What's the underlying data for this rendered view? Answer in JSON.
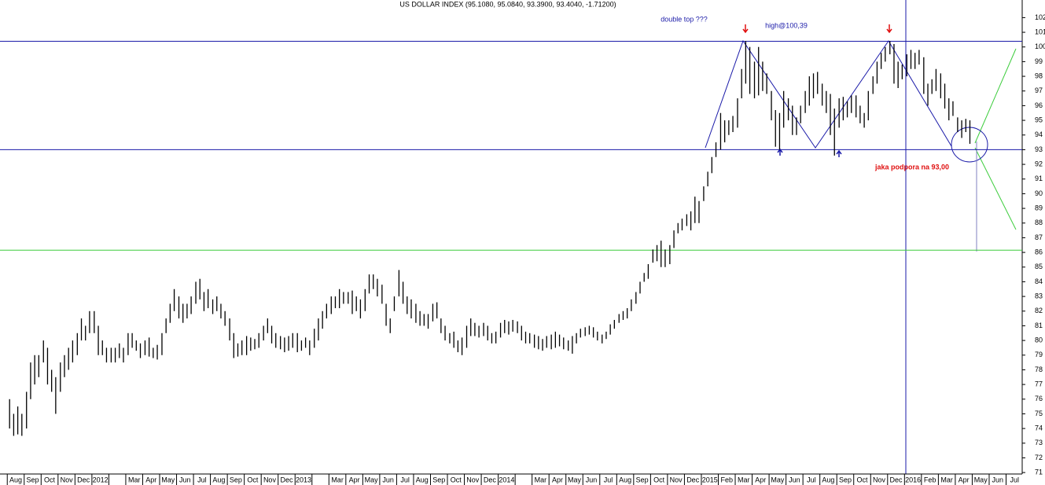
{
  "chart_data": {
    "type": "range-bar",
    "title": "US DOLLAR INDEX (95.1080, 95.0840, 93.3900, 93.4040, -1.71200)",
    "annotations": [
      {
        "text": "double top ???",
        "color": "#1a1aa8"
      },
      {
        "text": "high@100,39",
        "color": "#1a1aa8"
      },
      {
        "text": "jaka podpora na 93,00",
        "color": "#e01010"
      }
    ],
    "hlines": [
      {
        "value": 100.39,
        "color": "#1a1aa8"
      },
      {
        "value": 93,
        "color": "#1a1aa8"
      },
      {
        "value": 86.15,
        "color": "#3ccc3c"
      }
    ],
    "ylim": [
      70.9,
      103.2
    ],
    "yticks": [
      71,
      72,
      73,
      74,
      75,
      76,
      77,
      78,
      79,
      80,
      81,
      82,
      83,
      84,
      85,
      86,
      87,
      88,
      89,
      90,
      91,
      92,
      93,
      94,
      95,
      96,
      97,
      98,
      99,
      100,
      101,
      102
    ],
    "bar_color": "#000000",
    "categories": [
      "Aug",
      "Sep",
      "Oct",
      "Nov",
      "Dec",
      "2012",
      null,
      "Mar",
      "Apr",
      "May",
      "Jun",
      "Jul",
      "Aug",
      "Sep",
      "Oct",
      "Nov",
      "Dec",
      "2013",
      null,
      "Mar",
      "Apr",
      "May",
      "Jun",
      "Jul",
      "Aug",
      "Sep",
      "Oct",
      "Nov",
      "Dec",
      "2014",
      null,
      "Mar",
      "Apr",
      "May",
      "Jun",
      "Jul",
      "Aug",
      "Sep",
      "Oct",
      "Nov",
      "Dec",
      "2015",
      "Feb",
      "Mar",
      "Apr",
      "May",
      "Jun",
      "Jul",
      "Aug",
      "Sep",
      "Oct",
      "Nov",
      "Dec",
      "2016",
      "Feb",
      "Mar",
      "Apr",
      "May",
      "Jun",
      "Jul"
    ],
    "ranges": [
      [
        [
          74,
          76
        ],
        [
          73.5,
          75
        ],
        [
          73.6,
          75.5
        ],
        [
          73.5,
          75
        ]
      ],
      [
        [
          74,
          76.5
        ],
        [
          76,
          78.5
        ],
        [
          77,
          79
        ],
        [
          77.5,
          79
        ]
      ],
      [
        [
          78.5,
          80
        ],
        [
          77,
          79.5
        ],
        [
          76.5,
          78
        ],
        [
          75,
          77.5
        ]
      ],
      [
        [
          76.5,
          78.5
        ],
        [
          77.5,
          79
        ],
        [
          78,
          79.5
        ],
        [
          78.5,
          80
        ]
      ],
      [
        [
          79,
          80.5
        ],
        [
          80,
          81.5
        ],
        [
          80,
          81
        ],
        [
          80.5,
          82
        ]
      ],
      [
        [
          80.5,
          82
        ],
        [
          79,
          81
        ],
        [
          79,
          80
        ],
        [
          78.5,
          79.5
        ]
      ],
      [
        [
          78.5,
          79.5
        ],
        [
          78.5,
          79.5
        ],
        [
          78.8,
          79.8
        ],
        [
          78.5,
          79.5
        ]
      ],
      [
        [
          79,
          80.5
        ],
        [
          79.5,
          80.5
        ],
        [
          79.3,
          80
        ],
        [
          78.8,
          79.8
        ]
      ],
      [
        [
          79,
          80
        ],
        [
          78.9,
          80.2
        ],
        [
          78.8,
          79.5
        ],
        [
          78.7,
          79.7
        ]
      ],
      [
        [
          79,
          80.5
        ],
        [
          80.5,
          81.5
        ],
        [
          81.2,
          82.5
        ],
        [
          82,
          83.5
        ]
      ],
      [
        [
          81.5,
          83
        ],
        [
          81.2,
          82.5
        ],
        [
          81.5,
          82.5
        ],
        [
          81.8,
          83
        ]
      ],
      [
        [
          82.5,
          84
        ],
        [
          82.8,
          84.2
        ],
        [
          82,
          83.3
        ],
        [
          82.2,
          83.5
        ]
      ],
      [
        [
          81.8,
          82.8
        ],
        [
          82,
          83
        ],
        [
          81.5,
          82.5
        ],
        [
          81,
          82
        ]
      ],
      [
        [
          80,
          81.5
        ],
        [
          78.8,
          80.5
        ],
        [
          78.9,
          79.8
        ],
        [
          79,
          80
        ]
      ],
      [
        [
          79,
          80.3
        ],
        [
          79.3,
          80.2
        ],
        [
          79.4,
          80.1
        ],
        [
          79.5,
          80.5
        ]
      ],
      [
        [
          80,
          81
        ],
        [
          80.5,
          81.5
        ],
        [
          79.8,
          81
        ],
        [
          79.5,
          80.5
        ]
      ],
      [
        [
          79.4,
          80.3
        ],
        [
          79.2,
          80.2
        ],
        [
          79.3,
          80.3
        ],
        [
          79.5,
          80.5
        ]
      ],
      [
        [
          79.2,
          80.5
        ],
        [
          79.3,
          80
        ],
        [
          79.5,
          80.2
        ],
        [
          79,
          80
        ]
      ],
      [
        [
          79.5,
          80.8
        ],
        [
          80,
          81.5
        ],
        [
          80.8,
          82
        ],
        [
          81.5,
          82.5
        ]
      ],
      [
        [
          81.8,
          83
        ],
        [
          82.2,
          83
        ],
        [
          82.2,
          83.5
        ],
        [
          82.5,
          83.3
        ]
      ],
      [
        [
          82.5,
          83.3
        ],
        [
          81.8,
          83.4
        ],
        [
          82,
          83
        ],
        [
          81.5,
          82.8
        ]
      ],
      [
        [
          82,
          83.5
        ],
        [
          83.2,
          84.5
        ],
        [
          83.5,
          84.5
        ],
        [
          83,
          84.2
        ]
      ],
      [
        [
          82.5,
          83.8
        ],
        [
          81,
          82.5
        ],
        [
          80.5,
          81.5
        ],
        [
          82,
          83
        ]
      ],
      [
        [
          83,
          84.8
        ],
        [
          82.5,
          84
        ],
        [
          81.8,
          83
        ],
        [
          81.5,
          82.8
        ]
      ],
      [
        [
          81.2,
          82.5
        ],
        [
          81,
          82
        ],
        [
          81,
          81.8
        ],
        [
          80.8,
          81.8
        ]
      ],
      [
        [
          81.3,
          82.5
        ],
        [
          81.5,
          82.6
        ],
        [
          80.5,
          81.5
        ],
        [
          80,
          81
        ]
      ],
      [
        [
          79.8,
          80.5
        ],
        [
          79.5,
          80.6
        ],
        [
          79.2,
          80
        ],
        [
          79,
          80.2
        ]
      ],
      [
        [
          79.5,
          81
        ],
        [
          80.3,
          81.5
        ],
        [
          80.3,
          81.2
        ],
        [
          80.2,
          81
        ]
      ],
      [
        [
          80.3,
          81.2
        ],
        [
          80,
          81
        ],
        [
          79.8,
          80.5
        ],
        [
          79.8,
          80.6
        ]
      ],
      [
        [
          80.2,
          81.2
        ],
        [
          80.5,
          81.4
        ],
        [
          80.4,
          81.3
        ],
        [
          80.6,
          81.4
        ]
      ],
      [
        [
          80.5,
          81.3
        ],
        [
          80,
          81
        ],
        [
          79.8,
          80.6
        ],
        [
          79.8,
          80.5
        ]
      ],
      [
        [
          79.5,
          80.4
        ],
        [
          79.4,
          80.3
        ],
        [
          79.3,
          80.1
        ],
        [
          79.5,
          80.3
        ]
      ],
      [
        [
          79.4,
          80.4
        ],
        [
          79.5,
          80.6
        ],
        [
          79.6,
          80.4
        ],
        [
          79.4,
          80.2
        ]
      ],
      [
        [
          79.3,
          80
        ],
        [
          79.1,
          80.3
        ],
        [
          79.8,
          80.5
        ],
        [
          80.2,
          80.8
        ]
      ],
      [
        [
          80.3,
          80.9
        ],
        [
          80.4,
          81
        ],
        [
          80.2,
          80.9
        ],
        [
          80,
          80.6
        ]
      ],
      [
        [
          79.8,
          80.4
        ],
        [
          80.1,
          80.6
        ],
        [
          80.4,
          81.1
        ],
        [
          80.8,
          81.4
        ]
      ],
      [
        [
          81.2,
          81.8
        ],
        [
          81.4,
          82
        ],
        [
          81.5,
          82.2
        ],
        [
          82,
          82.8
        ]
      ],
      [
        [
          82.5,
          83.3
        ],
        [
          83.2,
          84
        ],
        [
          84,
          84.6
        ],
        [
          84.2,
          85.2
        ]
      ],
      [
        [
          85.3,
          86.2
        ],
        [
          85.4,
          86.5
        ],
        [
          85,
          86.8
        ],
        [
          85,
          86.2
        ]
      ],
      [
        [
          85.2,
          86.5
        ],
        [
          86.3,
          87.5
        ],
        [
          87.3,
          88
        ],
        [
          87.5,
          88.3
        ]
      ],
      [
        [
          87.8,
          88.6
        ],
        [
          87.5,
          88.8
        ],
        [
          88,
          89.8
        ],
        [
          88,
          89.5
        ]
      ],
      [
        [
          89.5,
          90.5
        ],
        [
          90.5,
          91.5
        ],
        [
          91.4,
          92.5
        ],
        [
          92.5,
          93.5
        ]
      ],
      [
        [
          93,
          95.5
        ],
        [
          93.5,
          95
        ],
        [
          94,
          95
        ],
        [
          94.2,
          95.3
        ]
      ],
      [
        [
          94.5,
          96.5
        ],
        [
          96.5,
          98.5
        ],
        [
          97.5,
          100.4
        ],
        [
          96.8,
          100
        ]
      ],
      [
        [
          96.5,
          99
        ],
        [
          96.7,
          100
        ],
        [
          97,
          99
        ],
        [
          96.8,
          98.2
        ]
      ],
      [
        [
          95,
          97
        ],
        [
          93.2,
          95.7
        ],
        [
          93,
          95.5
        ],
        [
          94.5,
          97
        ]
      ],
      [
        [
          95,
          96.5
        ],
        [
          94,
          96
        ],
        [
          94,
          95.2
        ],
        [
          94.8,
          96
        ]
      ],
      [
        [
          95.5,
          97
        ],
        [
          96,
          98
        ],
        [
          96.5,
          98.2
        ],
        [
          96.8,
          98.3
        ]
      ],
      [
        [
          96,
          97.5
        ],
        [
          95.5,
          97
        ],
        [
          94,
          96.8
        ],
        [
          92.6,
          95.8
        ]
      ],
      [
        [
          94.5,
          96.5
        ],
        [
          95,
          96.6
        ],
        [
          95.2,
          96.3
        ],
        [
          95.5,
          96.7
        ]
      ],
      [
        [
          95.2,
          96.7
        ],
        [
          94.8,
          96
        ],
        [
          94.5,
          95.5
        ],
        [
          95,
          97
        ]
      ],
      [
        [
          96.8,
          98
        ],
        [
          97.5,
          99
        ],
        [
          98.5,
          99.6
        ],
        [
          99,
          100
        ]
      ],
      [
        [
          99.5,
          100.4
        ],
        [
          97.5,
          100.2
        ],
        [
          97.2,
          99
        ],
        [
          97.8,
          98.8
        ]
      ],
      [
        [
          98,
          99.5
        ],
        [
          98.5,
          99.8
        ],
        [
          98.5,
          99.6
        ],
        [
          98.8,
          99.8
        ]
      ],
      [
        [
          96.8,
          99.3
        ],
        [
          96,
          97.5
        ],
        [
          96.8,
          97.8
        ],
        [
          97,
          98.5
        ]
      ],
      [
        [
          96.5,
          98.2
        ],
        [
          95.8,
          97.5
        ],
        [
          95,
          96.5
        ],
        [
          95.3,
          96.3
        ]
      ],
      [
        [
          94.2,
          95.2
        ],
        [
          93.8,
          95
        ],
        [
          94.2,
          95.1
        ],
        [
          93.4,
          95
        ]
      ],
      [],
      [],
      []
    ]
  }
}
